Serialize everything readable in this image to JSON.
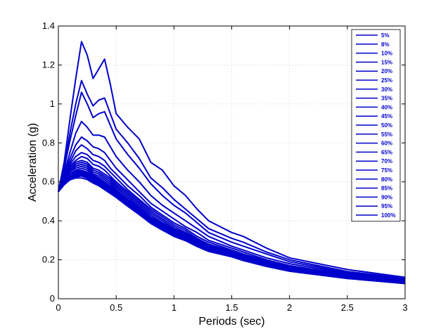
{
  "chart_data": {
    "type": "line",
    "title": "",
    "xlabel": "Periods (sec)",
    "ylabel": "Acceleration (g)",
    "xlim": [
      0,
      3
    ],
    "ylim": [
      0,
      1.4
    ],
    "xticks": [
      0,
      0.5,
      1,
      1.5,
      2,
      2.5,
      3
    ],
    "xtick_labels": [
      "0",
      "0.5",
      "1",
      "1.5",
      "2",
      "2.5",
      "3"
    ],
    "yticks": [
      0,
      0.2,
      0.4,
      0.6,
      0.8,
      1,
      1.2,
      1.4
    ],
    "ytick_labels": [
      "0",
      "0.2",
      "0.4",
      "0.6",
      "0.8",
      "1",
      "1.2",
      "1.4"
    ],
    "grid": true,
    "legend_position": "top-right",
    "line_color": "#0000cc",
    "x": [
      0,
      0.05,
      0.1,
      0.15,
      0.2,
      0.25,
      0.3,
      0.35,
      0.4,
      0.45,
      0.5,
      0.6,
      0.7,
      0.8,
      0.9,
      1.0,
      1.1,
      1.2,
      1.3,
      1.5,
      1.6,
      1.8,
      2.0,
      2.5,
      3.0
    ],
    "series": [
      {
        "name": "5%",
        "values": [
          0.55,
          0.7,
          0.92,
          1.13,
          1.32,
          1.25,
          1.13,
          1.18,
          1.23,
          1.1,
          0.95,
          0.88,
          0.82,
          0.7,
          0.66,
          0.58,
          0.53,
          0.46,
          0.4,
          0.34,
          0.32,
          0.26,
          0.21,
          0.15,
          0.11
        ]
      },
      {
        "name": "8%",
        "values": [
          0.55,
          0.68,
          0.85,
          1.0,
          1.12,
          1.05,
          0.99,
          1.02,
          1.03,
          0.95,
          0.87,
          0.8,
          0.72,
          0.62,
          0.57,
          0.51,
          0.46,
          0.41,
          0.36,
          0.31,
          0.29,
          0.24,
          0.2,
          0.14,
          0.105
        ]
      },
      {
        "name": "10%",
        "values": [
          0.55,
          0.67,
          0.81,
          0.94,
          1.06,
          1.0,
          0.93,
          0.95,
          0.96,
          0.89,
          0.82,
          0.74,
          0.67,
          0.59,
          0.53,
          0.48,
          0.44,
          0.39,
          0.34,
          0.29,
          0.27,
          0.23,
          0.19,
          0.135,
          0.1
        ]
      },
      {
        "name": "15%",
        "values": [
          0.55,
          0.65,
          0.75,
          0.85,
          0.91,
          0.88,
          0.84,
          0.84,
          0.83,
          0.78,
          0.73,
          0.66,
          0.6,
          0.53,
          0.48,
          0.44,
          0.4,
          0.36,
          0.32,
          0.27,
          0.25,
          0.21,
          0.18,
          0.13,
          0.095
        ]
      },
      {
        "name": "20%",
        "values": [
          0.55,
          0.64,
          0.72,
          0.79,
          0.83,
          0.81,
          0.78,
          0.77,
          0.75,
          0.71,
          0.67,
          0.61,
          0.55,
          0.49,
          0.45,
          0.41,
          0.37,
          0.34,
          0.3,
          0.26,
          0.24,
          0.2,
          0.17,
          0.125,
          0.092
        ]
      },
      {
        "name": "25%",
        "values": [
          0.55,
          0.63,
          0.7,
          0.76,
          0.79,
          0.77,
          0.74,
          0.73,
          0.71,
          0.67,
          0.64,
          0.58,
          0.53,
          0.47,
          0.43,
          0.39,
          0.36,
          0.32,
          0.29,
          0.25,
          0.23,
          0.195,
          0.165,
          0.12,
          0.09
        ]
      },
      {
        "name": "30%",
        "values": [
          0.55,
          0.62,
          0.69,
          0.73,
          0.75,
          0.74,
          0.71,
          0.7,
          0.68,
          0.65,
          0.62,
          0.56,
          0.51,
          0.46,
          0.42,
          0.38,
          0.35,
          0.31,
          0.28,
          0.245,
          0.225,
          0.19,
          0.16,
          0.118,
          0.088
        ]
      },
      {
        "name": "35%",
        "values": [
          0.55,
          0.62,
          0.68,
          0.71,
          0.73,
          0.72,
          0.69,
          0.68,
          0.66,
          0.63,
          0.6,
          0.55,
          0.5,
          0.45,
          0.41,
          0.37,
          0.34,
          0.305,
          0.275,
          0.24,
          0.22,
          0.185,
          0.158,
          0.116,
          0.087
        ]
      },
      {
        "name": "40%",
        "values": [
          0.55,
          0.61,
          0.67,
          0.7,
          0.71,
          0.7,
          0.67,
          0.66,
          0.64,
          0.62,
          0.59,
          0.54,
          0.49,
          0.44,
          0.4,
          0.36,
          0.335,
          0.3,
          0.27,
          0.235,
          0.215,
          0.182,
          0.155,
          0.114,
          0.086
        ]
      },
      {
        "name": "45%",
        "values": [
          0.55,
          0.61,
          0.66,
          0.69,
          0.7,
          0.69,
          0.66,
          0.65,
          0.63,
          0.61,
          0.58,
          0.53,
          0.48,
          0.43,
          0.39,
          0.355,
          0.33,
          0.295,
          0.265,
          0.232,
          0.212,
          0.18,
          0.153,
          0.113,
          0.085
        ]
      },
      {
        "name": "50%",
        "values": [
          0.55,
          0.61,
          0.65,
          0.68,
          0.69,
          0.68,
          0.65,
          0.64,
          0.62,
          0.6,
          0.57,
          0.52,
          0.47,
          0.42,
          0.385,
          0.35,
          0.325,
          0.29,
          0.262,
          0.23,
          0.21,
          0.178,
          0.151,
          0.112,
          0.084
        ]
      },
      {
        "name": "55%",
        "values": [
          0.55,
          0.6,
          0.65,
          0.67,
          0.68,
          0.67,
          0.64,
          0.63,
          0.61,
          0.59,
          0.56,
          0.51,
          0.465,
          0.415,
          0.38,
          0.345,
          0.32,
          0.287,
          0.26,
          0.228,
          0.208,
          0.176,
          0.15,
          0.111,
          0.083
        ]
      },
      {
        "name": "60%",
        "values": [
          0.55,
          0.6,
          0.64,
          0.66,
          0.67,
          0.66,
          0.635,
          0.62,
          0.6,
          0.58,
          0.555,
          0.505,
          0.46,
          0.41,
          0.375,
          0.34,
          0.317,
          0.284,
          0.257,
          0.226,
          0.206,
          0.175,
          0.149,
          0.11,
          0.082
        ]
      },
      {
        "name": "65%",
        "values": [
          0.55,
          0.6,
          0.64,
          0.655,
          0.66,
          0.65,
          0.63,
          0.615,
          0.595,
          0.575,
          0.55,
          0.5,
          0.455,
          0.405,
          0.37,
          0.337,
          0.314,
          0.281,
          0.255,
          0.224,
          0.204,
          0.173,
          0.148,
          0.109,
          0.081
        ]
      },
      {
        "name": "70%",
        "values": [
          0.55,
          0.6,
          0.63,
          0.65,
          0.655,
          0.645,
          0.625,
          0.61,
          0.59,
          0.57,
          0.545,
          0.495,
          0.45,
          0.4,
          0.366,
          0.334,
          0.311,
          0.279,
          0.253,
          0.222,
          0.202,
          0.172,
          0.147,
          0.108,
          0.081
        ]
      },
      {
        "name": "75%",
        "values": [
          0.55,
          0.59,
          0.63,
          0.645,
          0.65,
          0.64,
          0.62,
          0.605,
          0.585,
          0.565,
          0.54,
          0.49,
          0.445,
          0.397,
          0.363,
          0.331,
          0.308,
          0.277,
          0.251,
          0.22,
          0.201,
          0.171,
          0.146,
          0.107,
          0.08
        ]
      },
      {
        "name": "80%",
        "values": [
          0.55,
          0.59,
          0.625,
          0.64,
          0.645,
          0.635,
          0.615,
          0.6,
          0.58,
          0.56,
          0.535,
          0.487,
          0.442,
          0.394,
          0.36,
          0.328,
          0.306,
          0.275,
          0.249,
          0.219,
          0.2,
          0.17,
          0.145,
          0.107,
          0.08
        ]
      },
      {
        "name": "85%",
        "values": [
          0.55,
          0.59,
          0.62,
          0.635,
          0.64,
          0.63,
          0.61,
          0.595,
          0.575,
          0.555,
          0.53,
          0.484,
          0.44,
          0.392,
          0.358,
          0.326,
          0.304,
          0.273,
          0.248,
          0.218,
          0.199,
          0.169,
          0.144,
          0.106,
          0.079
        ]
      },
      {
        "name": "90%",
        "values": [
          0.55,
          0.59,
          0.62,
          0.63,
          0.635,
          0.625,
          0.605,
          0.59,
          0.57,
          0.55,
          0.527,
          0.481,
          0.437,
          0.39,
          0.356,
          0.324,
          0.302,
          0.271,
          0.246,
          0.217,
          0.198,
          0.168,
          0.143,
          0.105,
          0.079
        ]
      },
      {
        "name": "95%",
        "values": [
          0.55,
          0.585,
          0.615,
          0.625,
          0.63,
          0.62,
          0.6,
          0.585,
          0.565,
          0.545,
          0.524,
          0.478,
          0.435,
          0.388,
          0.354,
          0.322,
          0.3,
          0.27,
          0.245,
          0.216,
          0.197,
          0.167,
          0.142,
          0.105,
          0.078
        ]
      },
      {
        "name": "100%",
        "values": [
          0.55,
          0.585,
          0.61,
          0.62,
          0.62,
          0.612,
          0.594,
          0.58,
          0.56,
          0.54,
          0.52,
          0.475,
          0.432,
          0.386,
          0.352,
          0.32,
          0.298,
          0.268,
          0.243,
          0.215,
          0.196,
          0.166,
          0.141,
          0.104,
          0.078
        ]
      }
    ]
  }
}
